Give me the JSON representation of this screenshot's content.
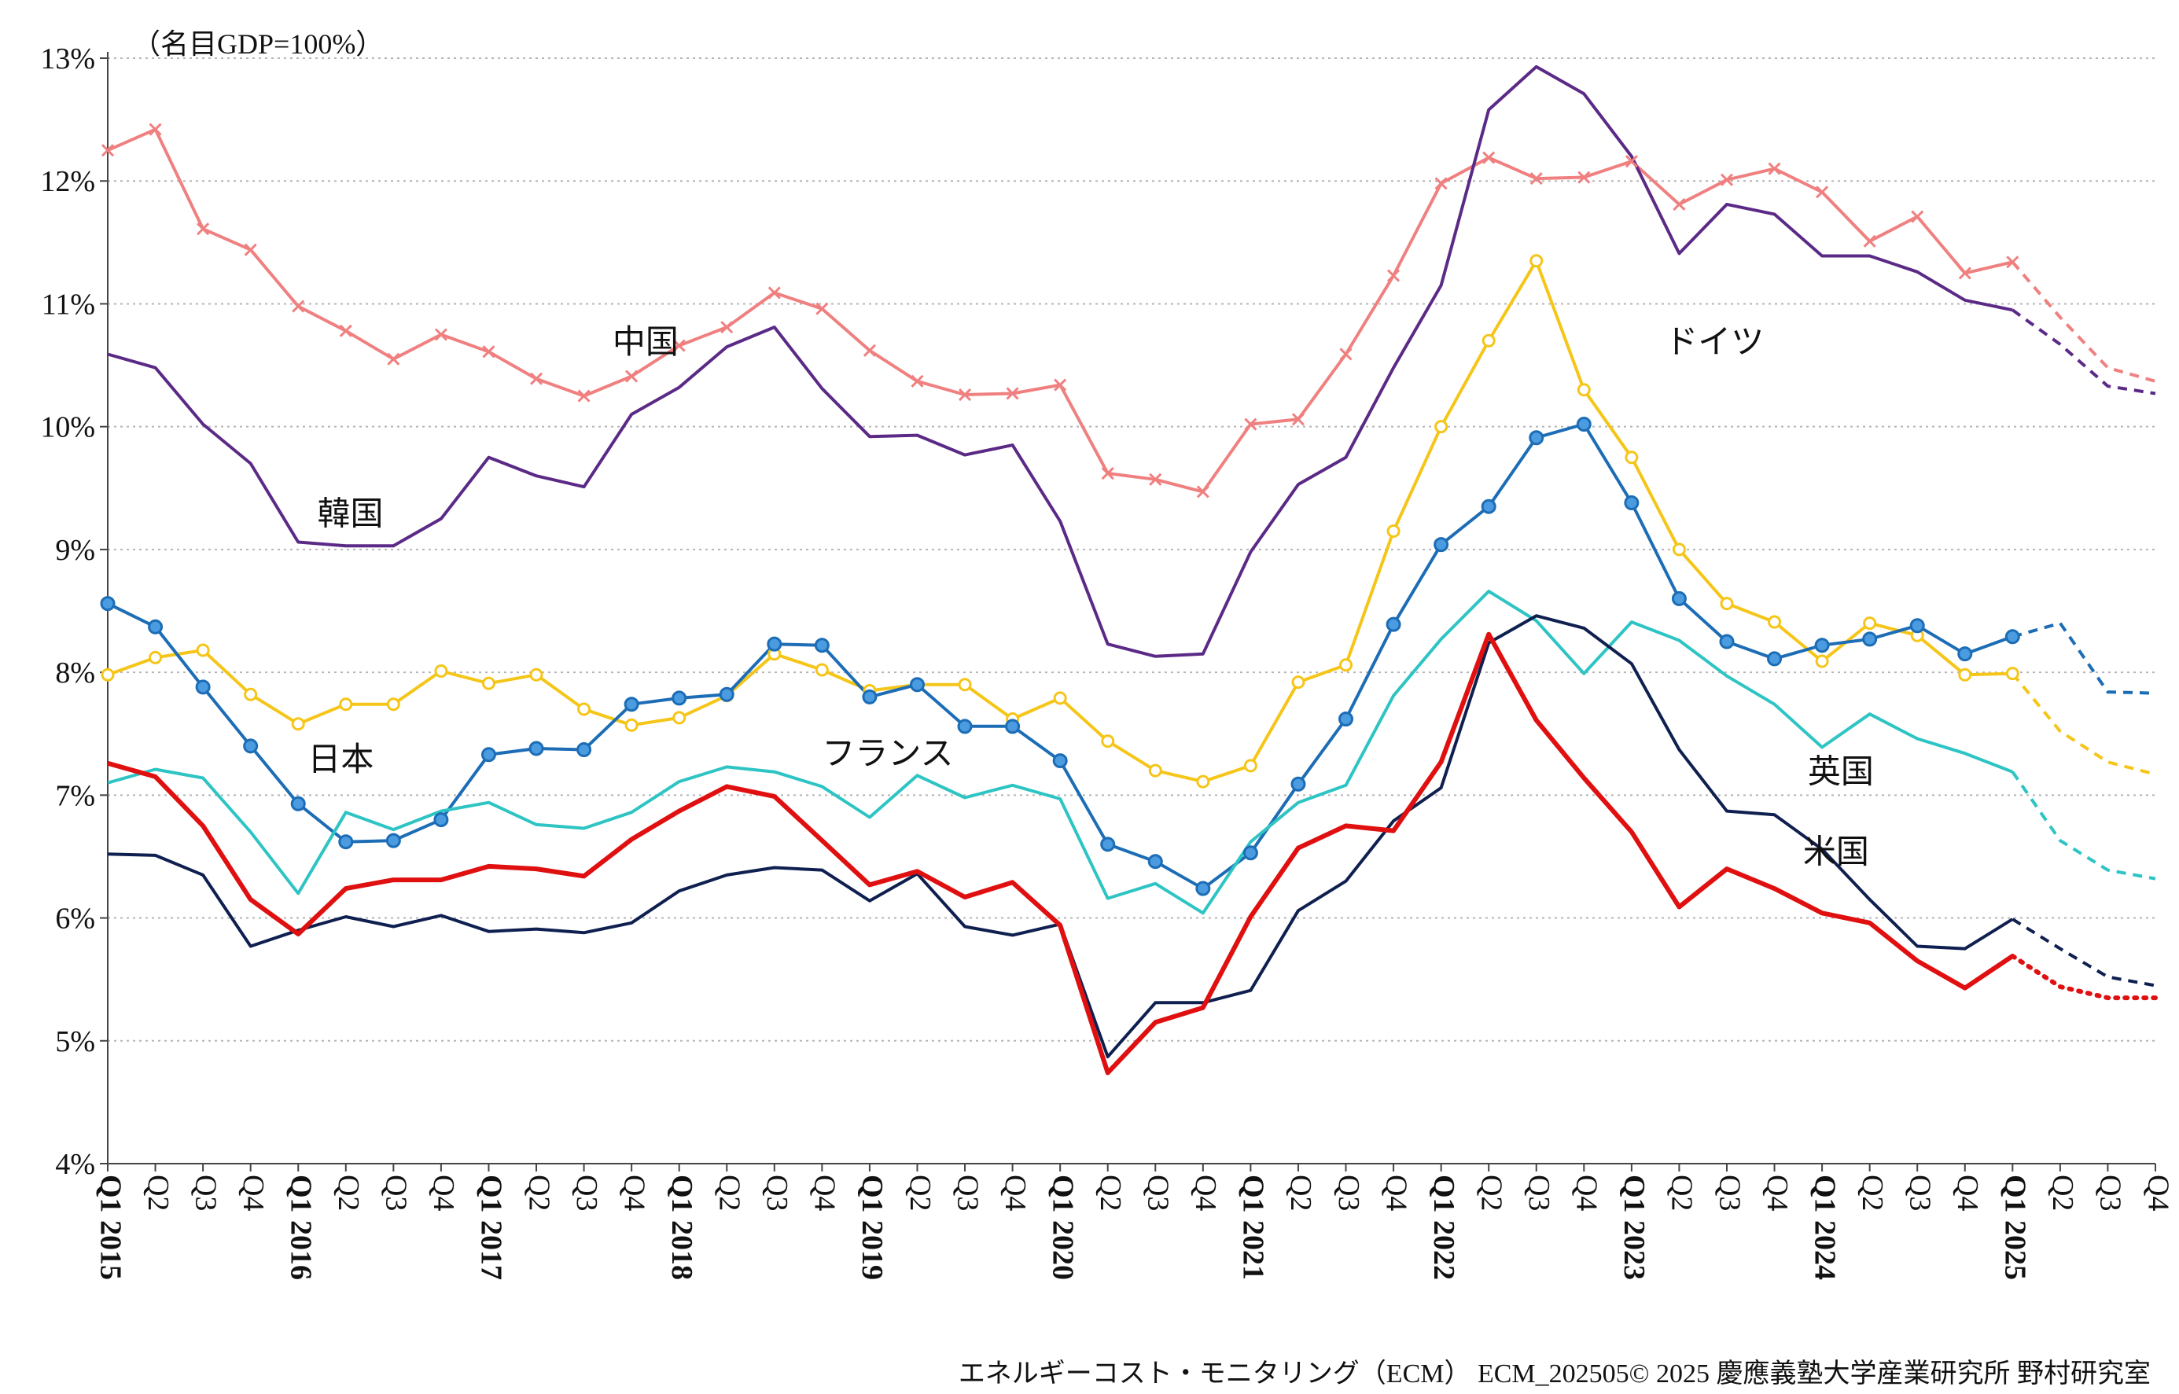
{
  "chart_data": {
    "type": "line",
    "unit_note": "（名目GDP=100%）",
    "credit": "エネルギーコスト・モニタリング（ECM） ECM_202505© 2025 慶應義塾大学産業研究所 野村研究室",
    "ylim": [
      4,
      13
    ],
    "y_ticks": [
      "4%",
      "5%",
      "6%",
      "7%",
      "8%",
      "9%",
      "10%",
      "11%",
      "12%",
      "13%"
    ],
    "grid": "horizontal dotted",
    "quarters": [
      "Q1",
      "Q2",
      "Q3",
      "Q4",
      "Q1",
      "Q2",
      "Q3",
      "Q4",
      "Q1",
      "Q2",
      "Q3",
      "Q4",
      "Q1",
      "Q2",
      "Q3",
      "Q4",
      "Q1",
      "Q2",
      "Q3",
      "Q4",
      "Q1",
      "Q2",
      "Q3",
      "Q4",
      "Q1",
      "Q2",
      "Q3",
      "Q4",
      "Q1",
      "Q2",
      "Q3",
      "Q4",
      "Q1",
      "Q2",
      "Q3",
      "Q4",
      "Q1",
      "Q2",
      "Q3",
      "Q4",
      "Q1",
      "Q2",
      "Q3",
      "Q4"
    ],
    "years": [
      {
        "index": 0,
        "label": "2015"
      },
      {
        "index": 4,
        "label": "2016"
      },
      {
        "index": 8,
        "label": "2017"
      },
      {
        "index": 12,
        "label": "2018"
      },
      {
        "index": 16,
        "label": "2019"
      },
      {
        "index": 20,
        "label": "2020"
      },
      {
        "index": 24,
        "label": "2021"
      },
      {
        "index": 28,
        "label": "2022"
      },
      {
        "index": 32,
        "label": "2023"
      },
      {
        "index": 36,
        "label": "2024"
      },
      {
        "index": 40,
        "label": "2025"
      }
    ],
    "series": [
      {
        "name": "中国",
        "color": "#f08080",
        "marker": "x",
        "width": 4,
        "values": [
          12.25,
          12.42,
          11.61,
          11.44,
          10.98,
          10.78,
          10.55,
          10.75,
          10.61,
          10.39,
          10.25,
          10.41,
          10.66,
          10.81,
          11.09,
          10.96,
          10.62,
          10.37,
          10.26,
          10.27,
          10.34,
          9.62,
          9.57,
          9.47,
          10.02,
          10.06,
          10.59,
          11.23,
          11.98,
          12.19,
          12.02,
          12.03,
          12.16,
          11.81,
          12.01,
          12.1,
          11.91,
          11.51,
          11.71,
          11.25,
          11.34,
          10.89,
          10.48,
          10.37
        ],
        "forecast_from": 40,
        "forecast_dash": "dashed",
        "label_pos": [
          10.6,
          10.6
        ]
      },
      {
        "name": "韓国",
        "color": "#5b2a86",
        "marker": "none",
        "width": 4,
        "values": [
          10.59,
          10.48,
          10.02,
          9.7,
          9.06,
          9.03,
          9.03,
          9.25,
          9.75,
          9.6,
          9.51,
          10.1,
          10.32,
          10.65,
          10.81,
          10.31,
          9.92,
          9.93,
          9.77,
          9.85,
          9.23,
          8.23,
          8.13,
          8.15,
          8.98,
          9.53,
          9.75,
          10.48,
          11.15,
          12.58,
          12.93,
          12.71,
          12.2,
          11.41,
          11.81,
          11.73,
          11.39,
          11.39,
          11.26,
          11.03,
          10.95,
          10.67,
          10.33,
          10.27
        ],
        "forecast_from": 40,
        "forecast_dash": "dashed",
        "label_pos": [
          4.4,
          9.2
        ]
      },
      {
        "name": "ドイツ",
        "color": "#f5c518",
        "marker": "circle-open",
        "width": 4,
        "values": [
          7.98,
          8.12,
          8.18,
          7.82,
          7.58,
          7.74,
          7.74,
          8.01,
          7.91,
          7.98,
          7.7,
          7.57,
          7.63,
          7.81,
          8.15,
          8.02,
          7.85,
          7.9,
          7.9,
          7.62,
          7.79,
          7.44,
          7.2,
          7.11,
          7.24,
          7.92,
          8.06,
          9.15,
          10.0,
          10.7,
          11.35,
          10.3,
          9.75,
          9.0,
          8.56,
          8.41,
          8.09,
          8.4,
          8.3,
          7.98,
          7.99,
          7.52,
          7.27,
          7.17
        ],
        "forecast_from": 40,
        "forecast_dash": "dashed",
        "label_pos": [
          32.7,
          10.6
        ]
      },
      {
        "name": "日本",
        "color": "#1c6db5",
        "marker": "circle-filled",
        "width": 4,
        "values": [
          8.56,
          8.37,
          7.88,
          7.4,
          6.93,
          6.62,
          6.63,
          6.8,
          7.33,
          7.38,
          7.37,
          7.74,
          7.79,
          7.82,
          8.23,
          8.22,
          7.8,
          7.9,
          7.56,
          7.56,
          7.28,
          6.6,
          6.46,
          6.24,
          6.53,
          7.09,
          7.62,
          8.39,
          9.04,
          9.35,
          9.91,
          10.02,
          9.38,
          8.6,
          8.25,
          8.11,
          8.22,
          8.27,
          8.38,
          8.15,
          8.29,
          8.4,
          7.84,
          7.83
        ],
        "forecast_from": 40,
        "forecast_dash": "dashed",
        "label_pos": [
          4.2,
          7.2
        ]
      },
      {
        "name": "フランス",
        "color": "#2ec4c4",
        "marker": "none",
        "width": 4,
        "values": [
          7.1,
          7.21,
          7.14,
          6.7,
          6.2,
          6.86,
          6.72,
          6.87,
          6.94,
          6.76,
          6.73,
          6.86,
          7.11,
          7.23,
          7.19,
          7.07,
          6.82,
          7.16,
          6.98,
          7.08,
          6.97,
          6.16,
          6.28,
          6.04,
          6.62,
          6.94,
          7.08,
          7.81,
          8.27,
          8.66,
          8.42,
          7.99,
          8.41,
          8.26,
          7.97,
          7.74,
          7.39,
          7.66,
          7.46,
          7.34,
          7.19,
          6.63,
          6.39,
          6.32
        ],
        "forecast_from": 40,
        "forecast_dash": "dashed",
        "label_pos": [
          15.0,
          7.25
        ]
      },
      {
        "name": "英国",
        "color": "#0f2050",
        "marker": "none",
        "width": 4,
        "values": [
          6.52,
          6.51,
          6.35,
          5.77,
          5.9,
          6.01,
          5.93,
          6.02,
          5.89,
          5.91,
          5.88,
          5.96,
          6.22,
          6.35,
          6.41,
          6.39,
          6.14,
          6.36,
          5.93,
          5.86,
          5.95,
          4.87,
          5.31,
          5.31,
          5.41,
          6.06,
          6.3,
          6.79,
          7.06,
          8.24,
          8.46,
          8.36,
          8.07,
          7.37,
          6.87,
          6.84,
          6.56,
          6.15,
          5.77,
          5.75,
          5.99,
          5.75,
          5.52,
          5.45
        ],
        "forecast_from": 40,
        "forecast_dash": "dashed",
        "label_pos": [
          35.7,
          7.1
        ]
      },
      {
        "name": "米国",
        "color": "#e01010",
        "marker": "none",
        "width": 6,
        "values": [
          7.26,
          7.15,
          6.75,
          6.15,
          5.87,
          6.24,
          6.31,
          6.31,
          6.42,
          6.4,
          6.34,
          6.64,
          6.87,
          7.07,
          6.99,
          6.63,
          6.27,
          6.38,
          6.17,
          6.29,
          5.94,
          4.74,
          5.15,
          5.27,
          6.01,
          6.57,
          6.75,
          6.71,
          7.27,
          8.31,
          7.61,
          7.14,
          6.7,
          6.09,
          6.4,
          6.24,
          6.04,
          5.96,
          5.65,
          5.43,
          5.69,
          5.44,
          5.35,
          5.35
        ],
        "forecast_from": 40,
        "forecast_dash": "dotted",
        "label_pos": [
          35.6,
          6.45
        ]
      }
    ]
  }
}
